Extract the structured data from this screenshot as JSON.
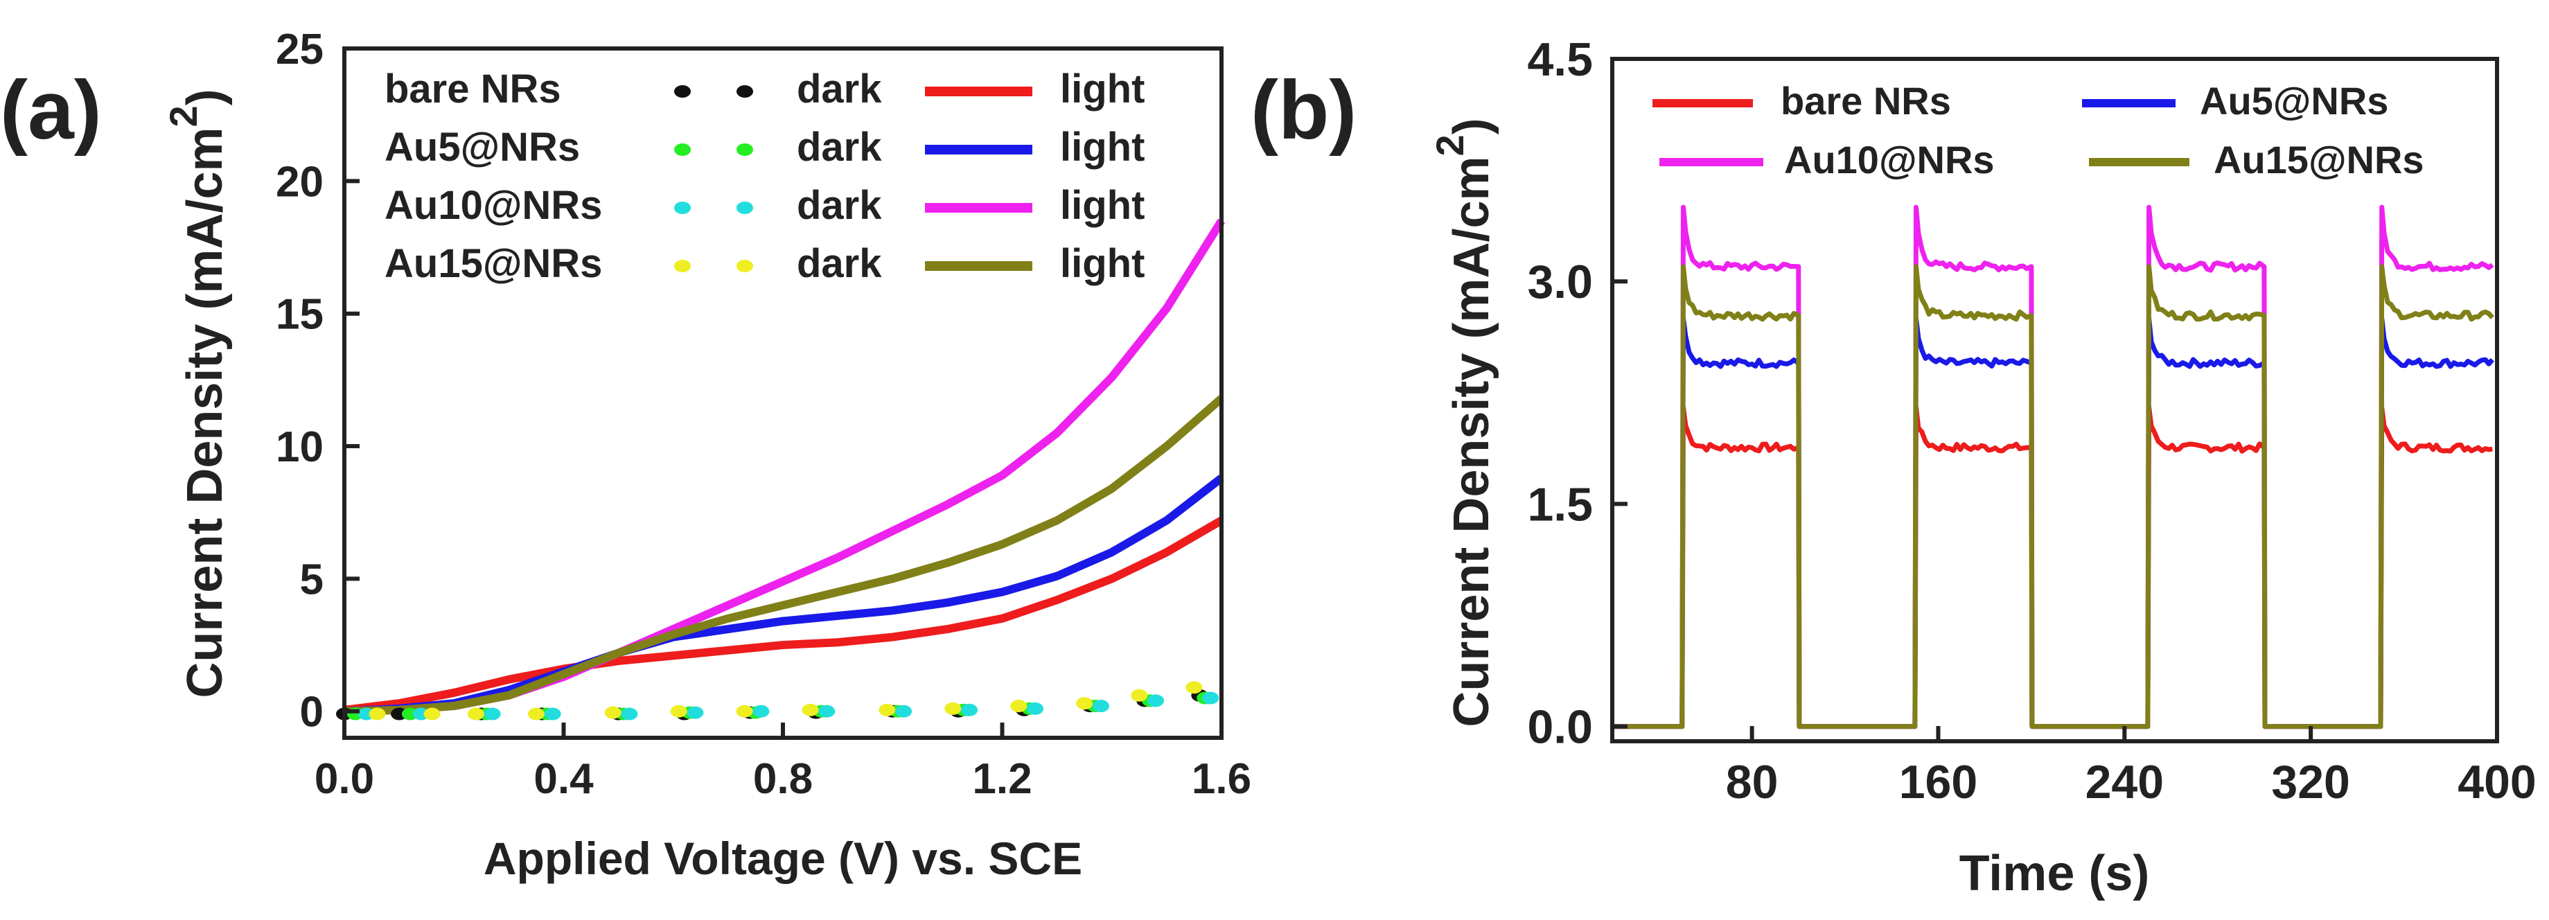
{
  "chart_data": [
    {
      "panel_label": "(a)",
      "type": "line",
      "xlabel": "Applied Voltage (V) vs. SCE",
      "ylabel": "Current  Density (mA/cm",
      "ylabel_sup": "2",
      "ylabel_close": ")",
      "xlim": [
        0.0,
        1.6
      ],
      "ylim": [
        -1,
        25
      ],
      "xticks": [
        0.0,
        0.4,
        0.8,
        1.2,
        1.6
      ],
      "xtick_labels": [
        "0.0",
        "0.4",
        "0.8",
        "1.2",
        "1.6"
      ],
      "yticks": [
        0,
        5,
        10,
        15,
        20,
        25
      ],
      "ytick_labels": [
        "0",
        "5",
        "10",
        "15",
        "20",
        "25"
      ],
      "legend_position": "top-left",
      "legend_rows": [
        {
          "sample": "bare NRs",
          "dark": "dark",
          "light": "light",
          "dark_color": "#111111",
          "light_color": "#ee1c1c"
        },
        {
          "sample": "Au5@NRs",
          "dark": "dark",
          "light": "light",
          "dark_color": "#22ee22",
          "light_color": "#1a1ae8"
        },
        {
          "sample": "Au10@NRs",
          "dark": "dark",
          "light": "light",
          "dark_color": "#22dddd",
          "light_color": "#ee22ee"
        },
        {
          "sample": "Au15@NRs",
          "dark": "dark",
          "light": "light",
          "dark_color": "#eeee22",
          "light_color": "#808018"
        }
      ],
      "x": [
        0.0,
        0.1,
        0.2,
        0.3,
        0.4,
        0.5,
        0.6,
        0.7,
        0.8,
        0.9,
        1.0,
        1.1,
        1.2,
        1.3,
        1.4,
        1.5,
        1.6
      ],
      "series_light": [
        {
          "name": "bare NRs",
          "color": "#ee1c1c",
          "values": [
            0.05,
            0.3,
            0.7,
            1.2,
            1.6,
            1.9,
            2.1,
            2.3,
            2.5,
            2.6,
            2.8,
            3.1,
            3.5,
            4.2,
            5.0,
            6.0,
            7.2
          ]
        },
        {
          "name": "Au5@NRs",
          "color": "#1a1ae8",
          "values": [
            0.0,
            0.1,
            0.3,
            0.8,
            1.5,
            2.2,
            2.8,
            3.1,
            3.4,
            3.6,
            3.8,
            4.1,
            4.5,
            5.1,
            6.0,
            7.2,
            8.8
          ]
        },
        {
          "name": "Au10@NRs",
          "color": "#ee22ee",
          "values": [
            0.0,
            0.05,
            0.2,
            0.6,
            1.3,
            2.2,
            3.1,
            4.0,
            4.9,
            5.8,
            6.8,
            7.8,
            8.9,
            10.5,
            12.6,
            15.2,
            18.5
          ]
        },
        {
          "name": "Au15@NRs",
          "color": "#808018",
          "values": [
            0.0,
            0.05,
            0.2,
            0.6,
            1.4,
            2.2,
            2.9,
            3.5,
            4.0,
            4.5,
            5.0,
            5.6,
            6.3,
            7.2,
            8.4,
            10.0,
            11.8
          ]
        }
      ],
      "series_dark": [
        {
          "name": "bare NRs",
          "color": "#111111",
          "x": [
            0.0,
            0.1,
            0.25,
            0.36,
            0.5,
            0.62,
            0.74,
            0.86,
            1.0,
            1.12,
            1.24,
            1.36,
            1.46,
            1.56
          ],
          "values": [
            -0.1,
            -0.1,
            -0.1,
            -0.1,
            -0.1,
            -0.1,
            -0.05,
            -0.05,
            0.0,
            0.0,
            0.05,
            0.2,
            0.4,
            0.6
          ]
        },
        {
          "name": "Au5@NRs",
          "color": "#22ee22",
          "x": [
            0.02,
            0.12,
            0.26,
            0.37,
            0.51,
            0.63,
            0.75,
            0.87,
            1.01,
            1.13,
            1.25,
            1.37,
            1.47,
            1.57
          ],
          "values": [
            -0.1,
            -0.1,
            -0.1,
            -0.1,
            -0.1,
            -0.05,
            -0.05,
            0.0,
            0.0,
            0.05,
            0.1,
            0.2,
            0.4,
            0.5
          ]
        },
        {
          "name": "Au10@NRs",
          "color": "#22dddd",
          "x": [
            0.04,
            0.14,
            0.27,
            0.38,
            0.52,
            0.64,
            0.76,
            0.88,
            1.02,
            1.14,
            1.26,
            1.38,
            1.48,
            1.58
          ],
          "values": [
            -0.1,
            -0.1,
            -0.1,
            -0.1,
            -0.1,
            -0.05,
            0.0,
            0.0,
            0.0,
            0.05,
            0.1,
            0.2,
            0.4,
            0.5
          ]
        },
        {
          "name": "Au15@NRs",
          "color": "#eeee22",
          "x": [
            0.06,
            0.16,
            0.24,
            0.35,
            0.49,
            0.61,
            0.73,
            0.85,
            0.99,
            1.11,
            1.23,
            1.35,
            1.45,
            1.55
          ],
          "values": [
            -0.1,
            -0.1,
            -0.1,
            -0.1,
            -0.05,
            0.0,
            0.0,
            0.05,
            0.05,
            0.1,
            0.2,
            0.3,
            0.6,
            0.9
          ]
        }
      ]
    },
    {
      "panel_label": "(b)",
      "type": "line",
      "xlabel": "Time (s)",
      "ylabel": "Current  Density (mA/cm",
      "ylabel_sup": "2",
      "ylabel_close": ")",
      "xlim": [
        20,
        400
      ],
      "ylim": [
        -0.1,
        4.5
      ],
      "xticks": [
        80,
        160,
        240,
        320,
        400
      ],
      "xtick_labels": [
        "80",
        "160",
        "240",
        "320",
        "400"
      ],
      "yticks": [
        0.0,
        1.5,
        3.0,
        4.5
      ],
      "ytick_labels": [
        "0.0",
        "1.5",
        "3.0",
        "4.5"
      ],
      "legend_position": "top",
      "on_periods": [
        [
          50,
          100
        ],
        [
          150,
          200
        ],
        [
          250,
          300
        ],
        [
          350,
          400
        ]
      ],
      "legend_entries": [
        {
          "name": "bare NRs",
          "color": "#ee1c1c"
        },
        {
          "name": "Au5@NRs",
          "color": "#1a1ae8"
        },
        {
          "name": "Au10@NRs",
          "color": "#ee22ee"
        },
        {
          "name": "Au15@NRs",
          "color": "#808018"
        }
      ],
      "series": [
        {
          "name": "bare NRs",
          "color": "#ee1c1c",
          "steady": 1.88,
          "spike": 2.15
        },
        {
          "name": "Au5@NRs",
          "color": "#1a1ae8",
          "steady": 2.45,
          "spike": 2.75
        },
        {
          "name": "Au10@NRs",
          "color": "#ee22ee",
          "steady": 3.1,
          "spike": 3.5
        },
        {
          "name": "Au15@NRs",
          "color": "#808018",
          "steady": 2.77,
          "spike": 3.1
        }
      ]
    }
  ]
}
